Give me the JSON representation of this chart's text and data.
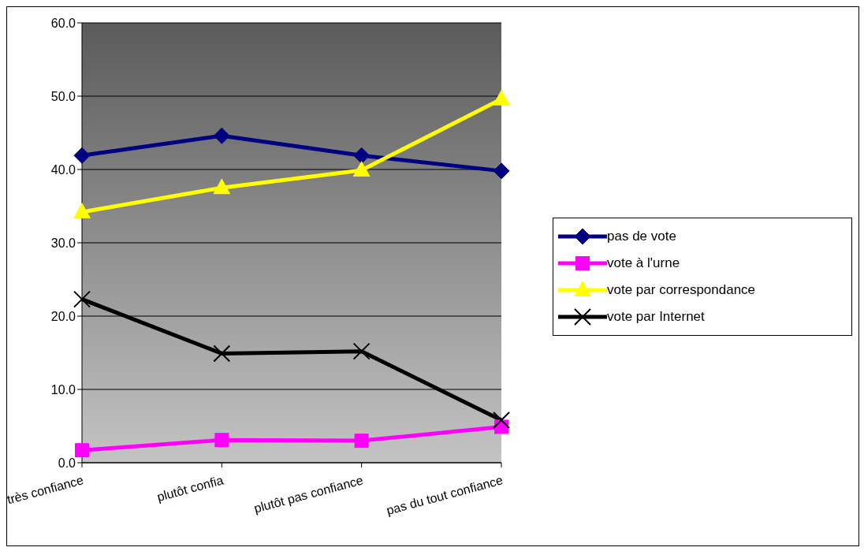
{
  "chart_data": {
    "type": "line",
    "categories": [
      "très confiance",
      "plutôt confia",
      "plutôt pas confiance",
      "pas du tout confiance"
    ],
    "series": [
      {
        "name": "pas de vote",
        "color": "#000080",
        "marker": "diamond",
        "values": [
          41.9,
          44.6,
          41.9,
          39.8
        ]
      },
      {
        "name": "vote à l'urne",
        "color": "#ff00ff",
        "marker": "square",
        "values": [
          1.7,
          3.1,
          3.0,
          4.9
        ]
      },
      {
        "name": "vote par correspondance",
        "color": "#ffff00",
        "marker": "triangle",
        "values": [
          34.2,
          37.5,
          39.9,
          49.6
        ]
      },
      {
        "name": "vote par Internet",
        "color": "#000000",
        "marker": "cross",
        "values": [
          22.3,
          14.9,
          15.2,
          5.8
        ]
      }
    ],
    "ylim": [
      0,
      60
    ],
    "yticks": [
      {
        "value": 0,
        "label": "0.0"
      },
      {
        "value": 10,
        "label": "10.0"
      },
      {
        "value": 20,
        "label": "20.0"
      },
      {
        "value": 30,
        "label": "30.0"
      },
      {
        "value": 40,
        "label": "40.0"
      },
      {
        "value": 50,
        "label": "50.0"
      },
      {
        "value": 60,
        "label": "60.0"
      }
    ],
    "grid": "y",
    "legend": "right",
    "line_style": "solid"
  }
}
